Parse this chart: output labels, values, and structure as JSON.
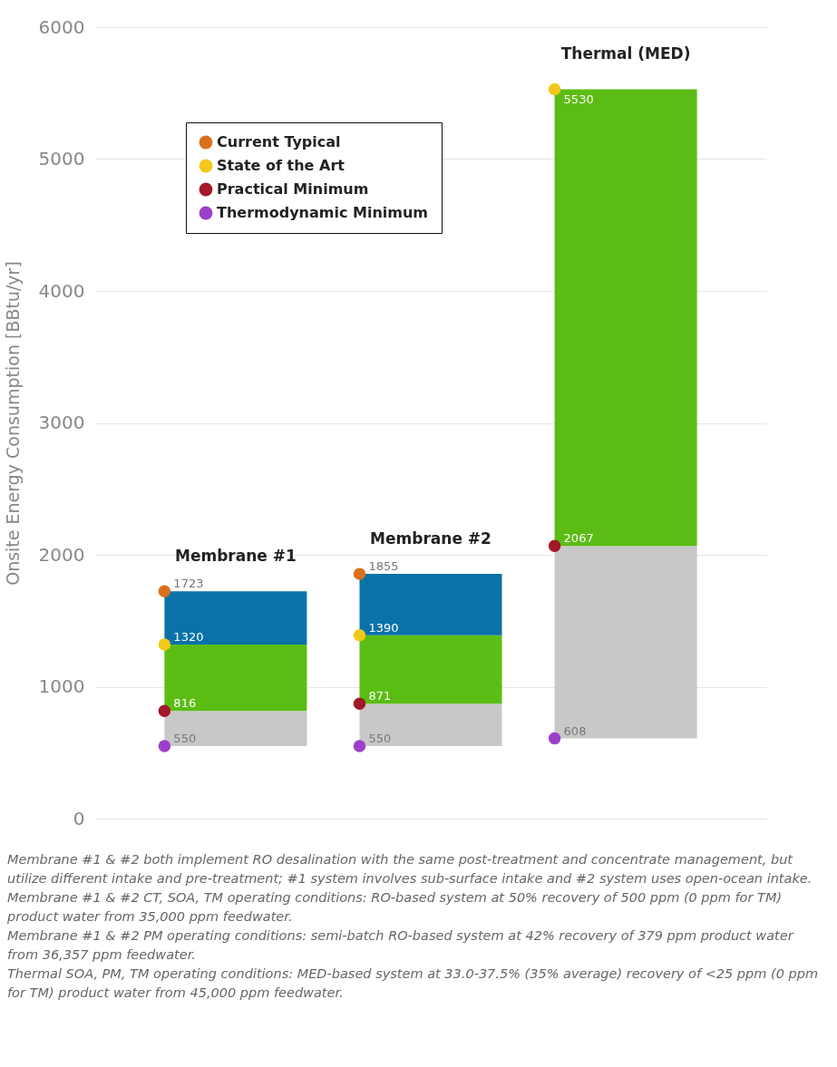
{
  "chart_data": {
    "type": "bar",
    "categories": [
      "Membrane #1",
      "Membrane #2",
      "Thermal (MED)"
    ],
    "ylabel": "Onsite Energy Consumption [BBtu/yr]",
    "ylim": [
      0,
      6000
    ],
    "yticks": [
      0,
      {
        "value": 1000,
        "label": "1000"
      },
      {
        "value": 2000,
        "label": "2000"
      },
      {
        "value": 3000,
        "label": "3000"
      },
      {
        "value": 4000,
        "label": "4000"
      },
      {
        "value": 5000,
        "label": "5000"
      },
      {
        "value": 6000,
        "label": "6000"
      }
    ],
    "grid": "y",
    "legend": "top left",
    "marker": "circle",
    "annotations": [
      "Membrane #1 & #2 both implement RO desalination with the same post-treatment and concentrate management, but utilize different intake and pre-treatment; #1 system involves sub-surface intake and #2 system uses open-ocean intake.",
      "Membrane #1 & #2 CT, SOA, TM operating conditions: RO-based system at 50% recovery of 500 ppm (0 ppm for TM) product water from 35,000 ppm feedwater.",
      "Membrane #1 & #2 PM operating conditions: semi-batch RO-based system at 42% recovery of 379 ppm product water from 36,357 ppm feedwater.",
      "Thermal SOA, PM, TM operating conditions: MED-based system at 33.0-37.5% (35% average) recovery of <25 ppm (0 ppm for TM) product water from 45,000 ppm feedwater."
    ],
    "series": [
      {
        "color": "#c8c8c8",
        "base": [
          550,
          550,
          608
        ],
        "values": [
          266,
          321,
          1459
        ]
      },
      {
        "color": "#5bbd14",
        "base": [
          816,
          871,
          2067
        ],
        "values": [
          504,
          519,
          3463
        ]
      },
      {
        "color": "#0a72a8",
        "base": [
          1320,
          1390,
          null
        ],
        "values": [
          403,
          465,
          null
        ]
      },
      {
        "type": "scatter",
        "name": "Current Typical",
        "color": "#d9711c",
        "values": [
          1723,
          1855,
          null
        ],
        "value_labels": [
          "1723",
          "1855",
          null
        ]
      },
      {
        "type": "scatter",
        "name": "State of the Art",
        "color": "#f2c81a",
        "values": [
          1320,
          1390,
          5530
        ],
        "value_labels": [
          "1320",
          "1390",
          "5530"
        ]
      },
      {
        "type": "scatter",
        "name": "Practical Minimum",
        "color": "#a3182a",
        "values": [
          816,
          871,
          2067
        ],
        "value_labels": [
          "816",
          "871",
          "2067"
        ]
      },
      {
        "type": "scatter",
        "name": "Thermodynamic Minimum",
        "color": "#9a3fc9",
        "values": [
          550,
          550,
          608
        ],
        "value_labels": [
          "550",
          "550",
          "608"
        ]
      }
    ]
  }
}
